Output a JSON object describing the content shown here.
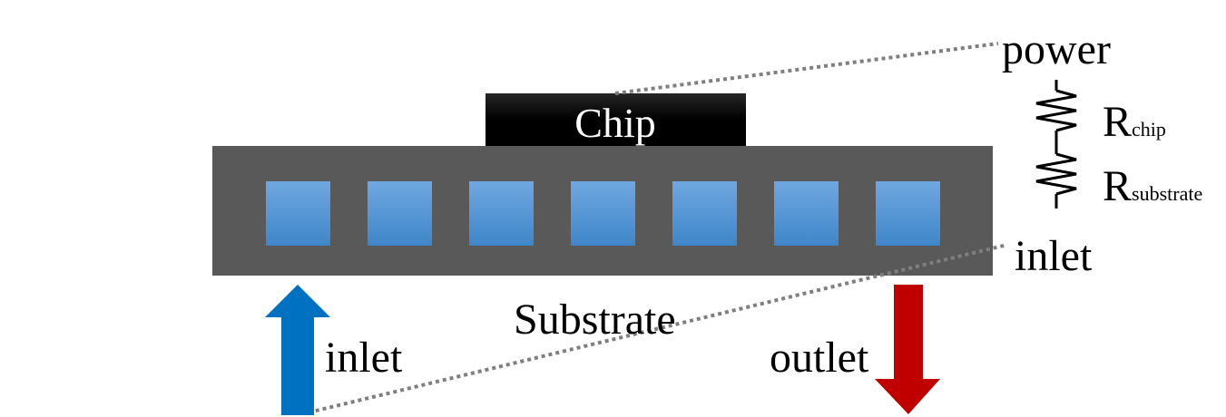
{
  "labels": {
    "chip": "Chip",
    "substrate": "Substrate",
    "inlet_left": "inlet",
    "outlet": "outlet",
    "power": "power",
    "inlet_right": "inlet",
    "r_chip_main": "R",
    "r_chip_sub": "chip",
    "r_substrate_main": "R",
    "r_substrate_sub": "substrate"
  },
  "colors": {
    "substrate": "#595959",
    "chip": "#000000",
    "channel_top": "#6fa8e0",
    "channel_bottom": "#3f86c9",
    "inlet_arrow": "#0070c0",
    "outlet_arrow": "#c00000",
    "dotted_line": "#7f7f7f"
  },
  "channels": {
    "count": 7
  },
  "icons": [
    "arrow-up-icon",
    "arrow-down-icon",
    "resistor-icon"
  ]
}
